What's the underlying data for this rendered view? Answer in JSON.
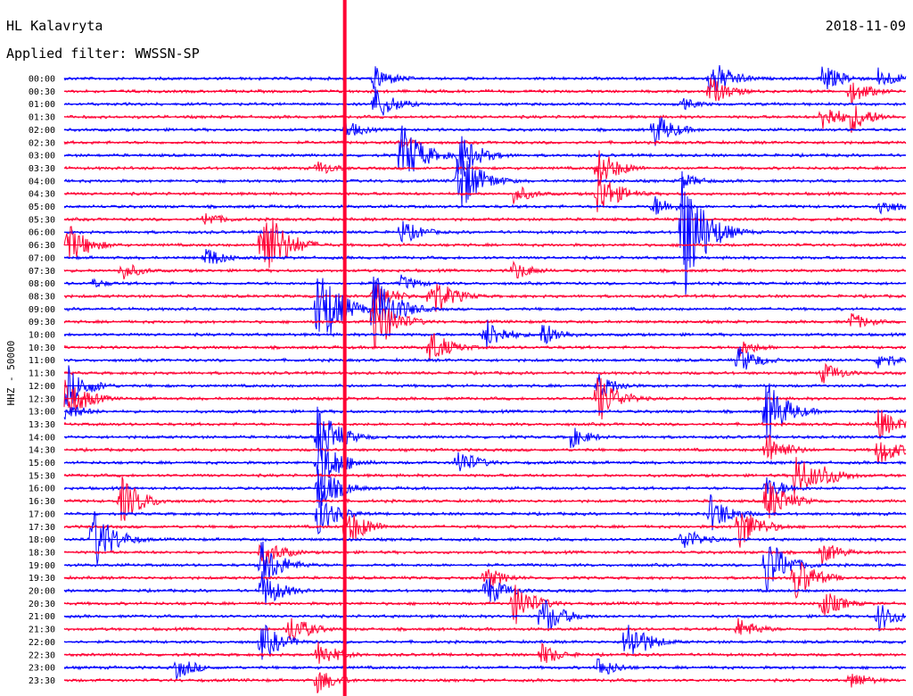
{
  "header": {
    "station": "HL Kalavryta",
    "date": "2018-11-09",
    "filter": "Applied filter: WWSSN-SP"
  },
  "chart_data": {
    "type": "line",
    "title": "HL Kalavryta",
    "subtitle": "Applied filter: WWSSN-SP",
    "date": "2018-11-09",
    "ylabel": "HHZ - 50000",
    "trace_colors": [
      "#0000ff",
      "#ff0033"
    ],
    "marker_color": "#ff0033",
    "marker_minute_offset": 10,
    "rows": [
      "00:00",
      "00:30",
      "01:00",
      "01:30",
      "02:00",
      "02:30",
      "03:00",
      "03:30",
      "04:00",
      "04:30",
      "05:00",
      "05:30",
      "06:00",
      "06:30",
      "07:00",
      "07:30",
      "08:00",
      "08:30",
      "09:00",
      "09:30",
      "10:00",
      "10:30",
      "11:00",
      "11:30",
      "12:00",
      "12:30",
      "13:00",
      "13:30",
      "14:00",
      "14:30",
      "15:00",
      "15:30",
      "16:00",
      "16:30",
      "17:00",
      "17:30",
      "18:00",
      "18:30",
      "19:00",
      "19:30",
      "20:00",
      "20:30",
      "21:00",
      "21:30",
      "22:00",
      "22:30",
      "23:00",
      "23:30"
    ],
    "events": [
      {
        "row": 0,
        "minute": 11,
        "amp": 16
      },
      {
        "row": 0,
        "minute": 23,
        "amp": 26
      },
      {
        "row": 0,
        "minute": 27,
        "amp": 18
      },
      {
        "row": 0,
        "minute": 29,
        "amp": 14
      },
      {
        "row": 1,
        "minute": 23,
        "amp": 18
      },
      {
        "row": 1,
        "minute": 28,
        "amp": 16
      },
      {
        "row": 2,
        "minute": 11,
        "amp": 24
      },
      {
        "row": 2,
        "minute": 22,
        "amp": 8
      },
      {
        "row": 3,
        "minute": 27,
        "amp": 18
      },
      {
        "row": 3,
        "minute": 28,
        "amp": 20
      },
      {
        "row": 4,
        "minute": 10,
        "amp": 12
      },
      {
        "row": 4,
        "minute": 21,
        "amp": 22
      },
      {
        "row": 5,
        "minute": 12,
        "amp": 6
      },
      {
        "row": 6,
        "minute": 12,
        "amp": 40
      },
      {
        "row": 6,
        "minute": 14,
        "amp": 30
      },
      {
        "row": 7,
        "minute": 9,
        "amp": 10
      },
      {
        "row": 7,
        "minute": 19,
        "amp": 24
      },
      {
        "row": 8,
        "minute": 14,
        "amp": 44
      },
      {
        "row": 8,
        "minute": 22,
        "amp": 10
      },
      {
        "row": 9,
        "minute": 16,
        "amp": 12
      },
      {
        "row": 9,
        "minute": 19,
        "amp": 28
      },
      {
        "row": 10,
        "minute": 21,
        "amp": 14
      },
      {
        "row": 10,
        "minute": 29,
        "amp": 12
      },
      {
        "row": 11,
        "minute": 5,
        "amp": 10
      },
      {
        "row": 12,
        "minute": 12,
        "amp": 16
      },
      {
        "row": 12,
        "minute": 22,
        "amp": 90
      },
      {
        "row": 13,
        "minute": 0,
        "amp": 30
      },
      {
        "row": 13,
        "minute": 7,
        "amp": 60
      },
      {
        "row": 14,
        "minute": 5,
        "amp": 14
      },
      {
        "row": 15,
        "minute": 2,
        "amp": 12
      },
      {
        "row": 15,
        "minute": 16,
        "amp": 12
      },
      {
        "row": 16,
        "minute": 1,
        "amp": 6
      },
      {
        "row": 16,
        "minute": 12,
        "amp": 10
      },
      {
        "row": 17,
        "minute": 11,
        "amp": 20
      },
      {
        "row": 17,
        "minute": 13,
        "amp": 30
      },
      {
        "row": 18,
        "minute": 9,
        "amp": 60
      },
      {
        "row": 18,
        "minute": 11,
        "amp": 50
      },
      {
        "row": 19,
        "minute": 11,
        "amp": 40
      },
      {
        "row": 19,
        "minute": 28,
        "amp": 12
      },
      {
        "row": 20,
        "minute": 15,
        "amp": 20
      },
      {
        "row": 20,
        "minute": 17,
        "amp": 16
      },
      {
        "row": 21,
        "minute": 13,
        "amp": 22
      },
      {
        "row": 21,
        "minute": 24,
        "amp": 12
      },
      {
        "row": 22,
        "minute": 24,
        "amp": 18
      },
      {
        "row": 22,
        "minute": 29,
        "amp": 12
      },
      {
        "row": 23,
        "minute": 27,
        "amp": 14
      },
      {
        "row": 24,
        "minute": 0,
        "amp": 30
      },
      {
        "row": 24,
        "minute": 19,
        "amp": 16
      },
      {
        "row": 25,
        "minute": 0,
        "amp": 30
      },
      {
        "row": 25,
        "minute": 19,
        "amp": 30
      },
      {
        "row": 26,
        "minute": 0,
        "amp": 12
      },
      {
        "row": 26,
        "minute": 25,
        "amp": 40
      },
      {
        "row": 27,
        "minute": 29,
        "amp": 20
      },
      {
        "row": 28,
        "minute": 9,
        "amp": 40
      },
      {
        "row": 28,
        "minute": 18,
        "amp": 14
      },
      {
        "row": 29,
        "minute": 25,
        "amp": 22
      },
      {
        "row": 29,
        "minute": 29,
        "amp": 20
      },
      {
        "row": 30,
        "minute": 9,
        "amp": 40
      },
      {
        "row": 30,
        "minute": 14,
        "amp": 18
      },
      {
        "row": 31,
        "minute": 27,
        "amp": 16
      },
      {
        "row": 31,
        "minute": 26,
        "amp": 30
      },
      {
        "row": 32,
        "minute": 9,
        "amp": 30
      },
      {
        "row": 32,
        "minute": 25,
        "amp": 16
      },
      {
        "row": 33,
        "minute": 25,
        "amp": 30
      },
      {
        "row": 33,
        "minute": 2,
        "amp": 30
      },
      {
        "row": 34,
        "minute": 9,
        "amp": 26
      },
      {
        "row": 34,
        "minute": 23,
        "amp": 24
      },
      {
        "row": 35,
        "minute": 10,
        "amp": 26
      },
      {
        "row": 35,
        "minute": 24,
        "amp": 30
      },
      {
        "row": 36,
        "minute": 1,
        "amp": 40
      },
      {
        "row": 36,
        "minute": 22,
        "amp": 16
      },
      {
        "row": 37,
        "minute": 7,
        "amp": 20
      },
      {
        "row": 37,
        "minute": 27,
        "amp": 14
      },
      {
        "row": 38,
        "minute": 7,
        "amp": 30
      },
      {
        "row": 38,
        "minute": 25,
        "amp": 36
      },
      {
        "row": 39,
        "minute": 26,
        "amp": 30
      },
      {
        "row": 39,
        "minute": 15,
        "amp": 14
      },
      {
        "row": 40,
        "minute": 7,
        "amp": 24
      },
      {
        "row": 40,
        "minute": 15,
        "amp": 20
      },
      {
        "row": 41,
        "minute": 16,
        "amp": 28
      },
      {
        "row": 41,
        "minute": 27,
        "amp": 18
      },
      {
        "row": 42,
        "minute": 17,
        "amp": 26
      },
      {
        "row": 42,
        "minute": 29,
        "amp": 18
      },
      {
        "row": 43,
        "minute": 8,
        "amp": 20
      },
      {
        "row": 43,
        "minute": 24,
        "amp": 14
      },
      {
        "row": 44,
        "minute": 7,
        "amp": 24
      },
      {
        "row": 44,
        "minute": 20,
        "amp": 30
      },
      {
        "row": 45,
        "minute": 9,
        "amp": 18
      },
      {
        "row": 45,
        "minute": 17,
        "amp": 14
      },
      {
        "row": 46,
        "minute": 4,
        "amp": 14
      },
      {
        "row": 46,
        "minute": 19,
        "amp": 14
      },
      {
        "row": 47,
        "minute": 28,
        "amp": 12
      },
      {
        "row": 47,
        "minute": 9,
        "amp": 16
      }
    ]
  }
}
